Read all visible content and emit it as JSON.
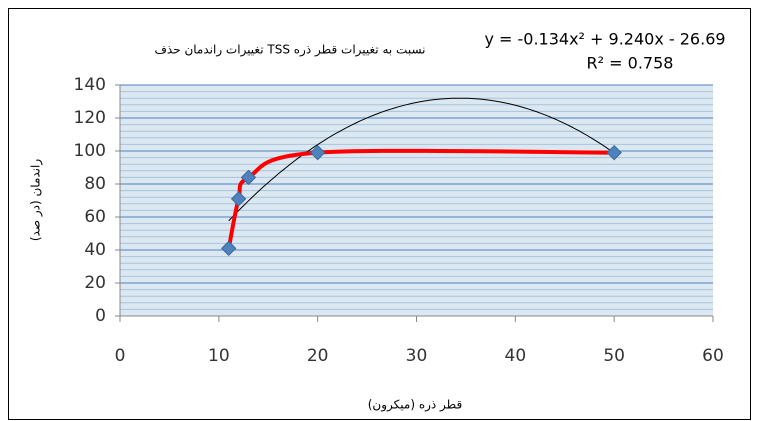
{
  "chart_data": {
    "type": "scatter",
    "title": "تغییرات راندمان حذف TSS نسبت به تغییرات قطر ذره",
    "x_label": "قطر ذره (میکرون)",
    "y_label": "راندمان (در صد)",
    "trendline": {
      "equation": "y = -0.134x² + 9.240x - 26.69",
      "r_squared": "R² = 0.758"
    },
    "x": [
      11,
      12,
      13,
      20,
      50
    ],
    "values": [
      41,
      71,
      84,
      99,
      99
    ],
    "color": "#4f81bd",
    "line_color": "#ff0000",
    "xlim": [
      0,
      60
    ],
    "xticks": [
      0,
      10,
      20,
      30,
      40,
      50,
      60
    ],
    "ylim": [
      0,
      140
    ],
    "yticks": [
      0,
      20,
      40,
      60,
      80,
      100,
      120,
      140
    ],
    "grid": true
  }
}
